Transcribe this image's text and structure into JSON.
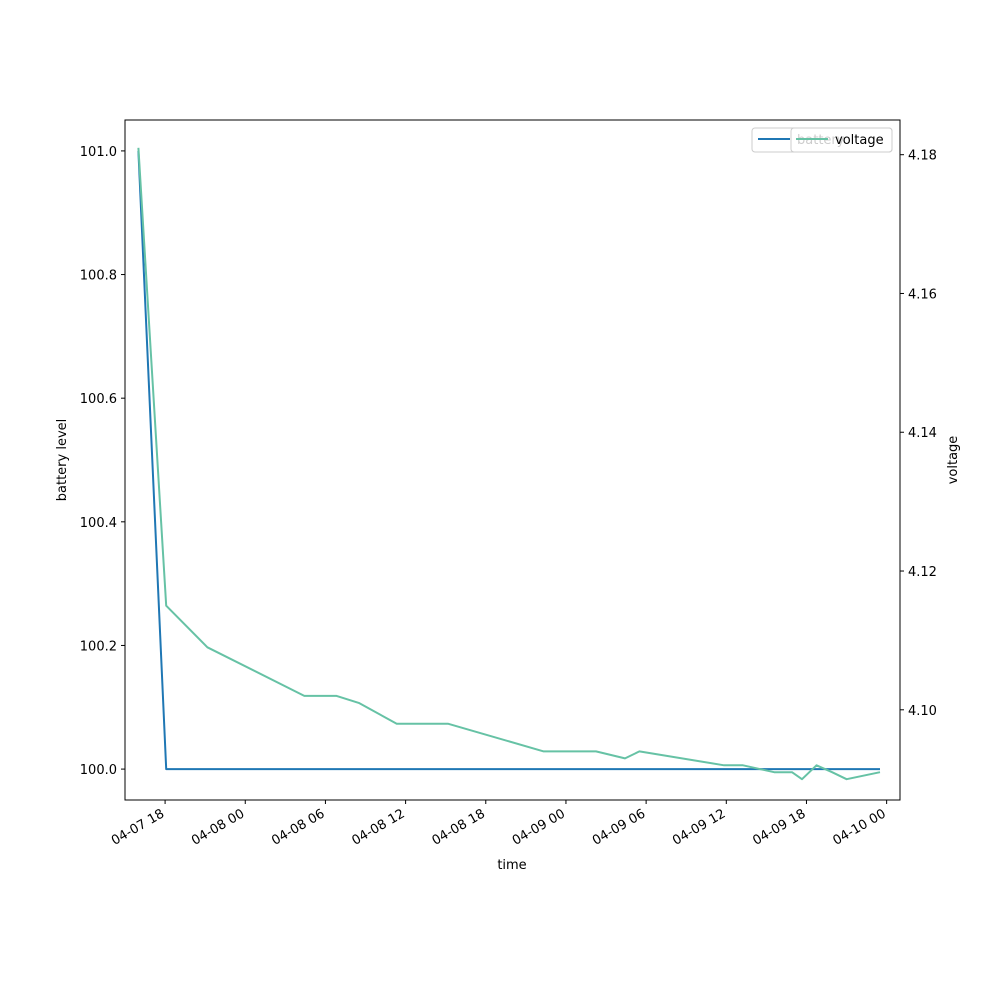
{
  "chart_data": {
    "type": "line",
    "title": "",
    "xlabel": "time",
    "ylabel": "battery level",
    "y2label": "voltage",
    "xlim": [
      "2026-04-07 15:00",
      "2026-04-10 01:00"
    ],
    "ylim": [
      99.95,
      101.05
    ],
    "y2lim": [
      4.087,
      4.185
    ],
    "x_ticks": [
      "04-07 18",
      "04-08 00",
      "04-08 06",
      "04-08 12",
      "04-08 18",
      "04-09 00",
      "04-09 06",
      "04-09 12",
      "04-09 18",
      "04-10 00"
    ],
    "x_tick_times": [
      "2026-04-07 18:00",
      "2026-04-08 00:00",
      "2026-04-08 06:00",
      "2026-04-08 12:00",
      "2026-04-08 18:00",
      "2026-04-09 00:00",
      "2026-04-09 06:00",
      "2026-04-09 12:00",
      "2026-04-09 18:00",
      "2026-04-10 00:00"
    ],
    "y_ticks": [
      "100.0",
      "100.2",
      "100.4",
      "100.6",
      "100.8",
      "101.0"
    ],
    "y2_ticks": [
      "4.10",
      "4.12",
      "4.14",
      "4.16",
      "4.18"
    ],
    "legend_position": "top-right",
    "series": [
      {
        "name": "battery",
        "axis": "left",
        "color": "#1f77b4",
        "points": [
          [
            "2026-04-07 16:00",
            101.0
          ],
          [
            "2026-04-07 18:05",
            100.0
          ],
          [
            "2026-04-09 23:30",
            100.0
          ]
        ]
      },
      {
        "name": "voltage",
        "axis": "right",
        "color": "#66c2a5",
        "points": [
          [
            "2026-04-07 16:00",
            4.181
          ],
          [
            "2026-04-07 18:05",
            4.115
          ],
          [
            "2026-04-07 21:10",
            4.109
          ],
          [
            "2026-04-08 04:25",
            4.102
          ],
          [
            "2026-04-08 06:50",
            4.102
          ],
          [
            "2026-04-08 08:30",
            4.101
          ],
          [
            "2026-04-08 11:20",
            4.098
          ],
          [
            "2026-04-08 15:10",
            4.098
          ],
          [
            "2026-04-08 22:20",
            4.094
          ],
          [
            "2026-04-09 02:15",
            4.094
          ],
          [
            "2026-04-09 04:25",
            4.093
          ],
          [
            "2026-04-09 05:30",
            4.094
          ],
          [
            "2026-04-09 11:50",
            4.092
          ],
          [
            "2026-04-09 13:15",
            4.092
          ],
          [
            "2026-04-09 15:35",
            4.091
          ],
          [
            "2026-04-09 16:55",
            4.091
          ],
          [
            "2026-04-09 17:40",
            4.09
          ],
          [
            "2026-04-09 18:45",
            4.092
          ],
          [
            "2026-04-09 19:55",
            4.091
          ],
          [
            "2026-04-09 21:00",
            4.09
          ],
          [
            "2026-04-09 23:30",
            4.091
          ]
        ]
      }
    ]
  }
}
